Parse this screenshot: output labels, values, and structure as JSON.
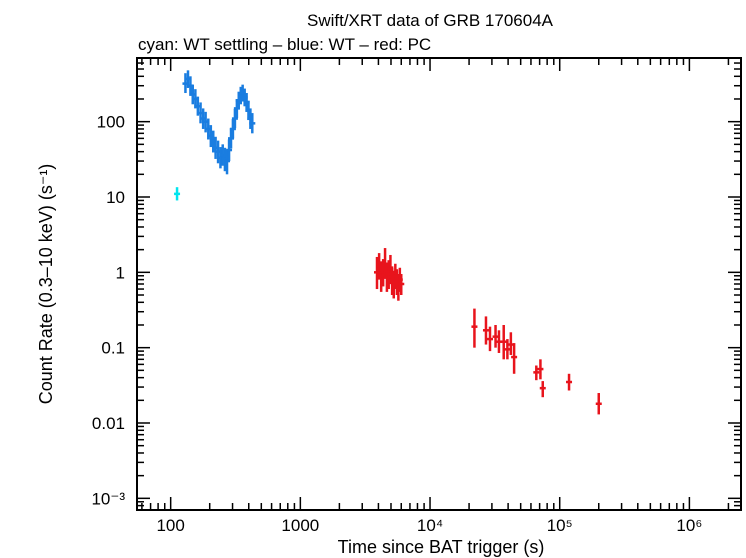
{
  "chart_data": {
    "type": "scatter",
    "title": "Swift/XRT data of GRB 170604A",
    "subtitle": "cyan: WT settling – blue: WT – red: PC",
    "xlabel": "Time since BAT trigger (s)",
    "ylabel": "Count Rate (0.3–10 keV) (s⁻¹)",
    "xscale": "log",
    "yscale": "log",
    "xlim": [
      55,
      2500000
    ],
    "ylim": [
      0.0007,
      700
    ],
    "x_ticks": [
      {
        "value": 100,
        "label": "100"
      },
      {
        "value": 1000,
        "label": "1000"
      },
      {
        "value": 10000,
        "label": "10⁴"
      },
      {
        "value": 100000,
        "label": "10⁵"
      },
      {
        "value": 1000000,
        "label": "10⁶"
      }
    ],
    "y_ticks": [
      {
        "value": 0.001,
        "label": "10⁻³"
      },
      {
        "value": 0.01,
        "label": "0.01"
      },
      {
        "value": 0.1,
        "label": "0.1"
      },
      {
        "value": 1,
        "label": "1"
      },
      {
        "value": 10,
        "label": "10"
      },
      {
        "value": 100,
        "label": "100"
      }
    ],
    "series": [
      {
        "color": "#00e5ee",
        "points": [
          {
            "x": 112,
            "y": 11,
            "ylo": 9,
            "yhi": 13.5
          }
        ]
      },
      {
        "color": "#1a7de0",
        "points": [
          {
            "x": 130,
            "y": 320,
            "ylo": 240,
            "yhi": 440
          },
          {
            "x": 136,
            "y": 370,
            "ylo": 280,
            "yhi": 480
          },
          {
            "x": 142,
            "y": 300,
            "ylo": 220,
            "yhi": 400
          },
          {
            "x": 148,
            "y": 230,
            "ylo": 170,
            "yhi": 310
          },
          {
            "x": 155,
            "y": 200,
            "ylo": 150,
            "yhi": 270
          },
          {
            "x": 162,
            "y": 160,
            "ylo": 120,
            "yhi": 215
          },
          {
            "x": 170,
            "y": 130,
            "ylo": 95,
            "yhi": 180
          },
          {
            "x": 178,
            "y": 110,
            "ylo": 80,
            "yhi": 150
          },
          {
            "x": 186,
            "y": 100,
            "ylo": 72,
            "yhi": 135
          },
          {
            "x": 195,
            "y": 80,
            "ylo": 58,
            "yhi": 110
          },
          {
            "x": 204,
            "y": 65,
            "ylo": 46,
            "yhi": 90
          },
          {
            "x": 213,
            "y": 55,
            "ylo": 39,
            "yhi": 76
          },
          {
            "x": 222,
            "y": 45,
            "ylo": 32,
            "yhi": 63
          },
          {
            "x": 232,
            "y": 40,
            "ylo": 28,
            "yhi": 56
          },
          {
            "x": 242,
            "y": 33,
            "ylo": 24,
            "yhi": 46
          },
          {
            "x": 252,
            "y": 36,
            "ylo": 26,
            "yhi": 50
          },
          {
            "x": 262,
            "y": 32,
            "ylo": 22,
            "yhi": 45
          },
          {
            "x": 272,
            "y": 30,
            "ylo": 20,
            "yhi": 42
          },
          {
            "x": 282,
            "y": 42,
            "ylo": 30,
            "yhi": 58
          },
          {
            "x": 292,
            "y": 60,
            "ylo": 44,
            "yhi": 82
          },
          {
            "x": 302,
            "y": 80,
            "ylo": 60,
            "yhi": 108
          },
          {
            "x": 313,
            "y": 110,
            "ylo": 82,
            "yhi": 148
          },
          {
            "x": 324,
            "y": 150,
            "ylo": 112,
            "yhi": 200
          },
          {
            "x": 335,
            "y": 190,
            "ylo": 145,
            "yhi": 250
          },
          {
            "x": 347,
            "y": 220,
            "ylo": 170,
            "yhi": 290
          },
          {
            "x": 359,
            "y": 240,
            "ylo": 185,
            "yhi": 310
          },
          {
            "x": 372,
            "y": 210,
            "ylo": 160,
            "yhi": 275
          },
          {
            "x": 385,
            "y": 180,
            "ylo": 135,
            "yhi": 240
          },
          {
            "x": 398,
            "y": 140,
            "ylo": 105,
            "yhi": 190
          },
          {
            "x": 412,
            "y": 110,
            "ylo": 80,
            "yhi": 150
          },
          {
            "x": 426,
            "y": 95,
            "ylo": 70,
            "yhi": 130
          }
        ]
      },
      {
        "color": "#e8141c",
        "points": [
          {
            "x": 3900,
            "y": 1.0,
            "ylo": 0.6,
            "yhi": 1.6
          },
          {
            "x": 4050,
            "y": 1.2,
            "ylo": 0.8,
            "yhi": 1.8
          },
          {
            "x": 4200,
            "y": 0.9,
            "ylo": 0.55,
            "yhi": 1.4
          },
          {
            "x": 4350,
            "y": 1.0,
            "ylo": 0.65,
            "yhi": 1.5
          },
          {
            "x": 4500,
            "y": 1.3,
            "ylo": 0.85,
            "yhi": 2.1
          },
          {
            "x": 4650,
            "y": 0.85,
            "ylo": 0.55,
            "yhi": 1.3
          },
          {
            "x": 4800,
            "y": 0.95,
            "ylo": 0.6,
            "yhi": 1.45
          },
          {
            "x": 4950,
            "y": 1.1,
            "ylo": 0.7,
            "yhi": 1.7
          },
          {
            "x": 5100,
            "y": 0.8,
            "ylo": 0.5,
            "yhi": 1.2
          },
          {
            "x": 5250,
            "y": 0.7,
            "ylo": 0.45,
            "yhi": 1.05
          },
          {
            "x": 5400,
            "y": 0.9,
            "ylo": 0.6,
            "yhi": 1.3
          },
          {
            "x": 5550,
            "y": 0.75,
            "ylo": 0.5,
            "yhi": 1.1
          },
          {
            "x": 5700,
            "y": 0.65,
            "ylo": 0.42,
            "yhi": 0.95
          },
          {
            "x": 5850,
            "y": 0.8,
            "ylo": 0.55,
            "yhi": 1.15
          },
          {
            "x": 6000,
            "y": 0.7,
            "ylo": 0.5,
            "yhi": 0.95
          },
          {
            "x": 22000,
            "y": 0.19,
            "ylo": 0.1,
            "yhi": 0.33
          },
          {
            "x": 27000,
            "y": 0.17,
            "ylo": 0.11,
            "yhi": 0.26
          },
          {
            "x": 29000,
            "y": 0.13,
            "ylo": 0.09,
            "yhi": 0.19
          },
          {
            "x": 32000,
            "y": 0.14,
            "ylo": 0.1,
            "yhi": 0.2
          },
          {
            "x": 34000,
            "y": 0.12,
            "ylo": 0.085,
            "yhi": 0.17
          },
          {
            "x": 37000,
            "y": 0.12,
            "ylo": 0.07,
            "yhi": 0.2
          },
          {
            "x": 39500,
            "y": 0.095,
            "ylo": 0.07,
            "yhi": 0.13
          },
          {
            "x": 42000,
            "y": 0.11,
            "ylo": 0.08,
            "yhi": 0.16
          },
          {
            "x": 44500,
            "y": 0.075,
            "ylo": 0.045,
            "yhi": 0.115
          },
          {
            "x": 66000,
            "y": 0.047,
            "ylo": 0.037,
            "yhi": 0.058
          },
          {
            "x": 71000,
            "y": 0.052,
            "ylo": 0.038,
            "yhi": 0.07
          },
          {
            "x": 74000,
            "y": 0.029,
            "ylo": 0.022,
            "yhi": 0.036
          },
          {
            "x": 118000,
            "y": 0.035,
            "ylo": 0.027,
            "yhi": 0.045
          },
          {
            "x": 200000,
            "y": 0.018,
            "ylo": 0.013,
            "yhi": 0.025
          }
        ]
      }
    ]
  }
}
